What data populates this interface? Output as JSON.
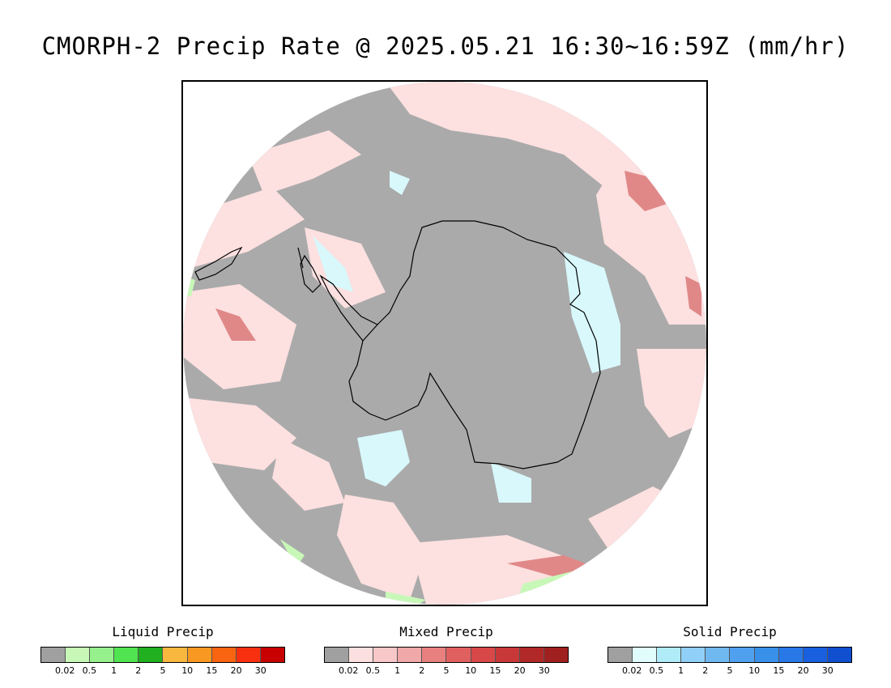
{
  "title": "CMORPH-2 Precip Rate @ 2025.05.21 16:30~16:59Z (mm/hr)",
  "map": {
    "projection": "south-polar-stereographic",
    "background_color": "#aaaaaa",
    "features": [
      "antarctica-coastline",
      "south-america-tip",
      "new-zealand-south"
    ]
  },
  "legends": [
    {
      "id": "liquid",
      "title": "Liquid Precip",
      "colors": [
        "#a0a0a0",
        "#c8f8b8",
        "#96f08c",
        "#50e450",
        "#20b020",
        "#f8b840",
        "#f89820",
        "#f86410",
        "#f83010",
        "#c80000"
      ],
      "ticks": [
        "0.02",
        "0.5",
        "1",
        "2",
        "5",
        "10",
        "15",
        "20",
        "30"
      ]
    },
    {
      "id": "mixed",
      "title": "Mixed Precip",
      "colors": [
        "#a0a0a0",
        "#fce0e0",
        "#f8c8c8",
        "#f0a8a8",
        "#e88080",
        "#e06060",
        "#d84848",
        "#c83838",
        "#b02828",
        "#a02020"
      ],
      "ticks": [
        "0.02",
        "0.5",
        "1",
        "2",
        "5",
        "10",
        "15",
        "20",
        "30"
      ]
    },
    {
      "id": "solid",
      "title": "Solid Precip",
      "colors": [
        "#a0a0a0",
        "#e0fcfc",
        "#b0ecf8",
        "#90d0f8",
        "#70b8f0",
        "#50a0f0",
        "#3890e8",
        "#2878e8",
        "#1860e0",
        "#1050d0"
      ],
      "ticks": [
        "0.02",
        "0.5",
        "1",
        "2",
        "5",
        "10",
        "15",
        "20",
        "30"
      ]
    }
  ]
}
